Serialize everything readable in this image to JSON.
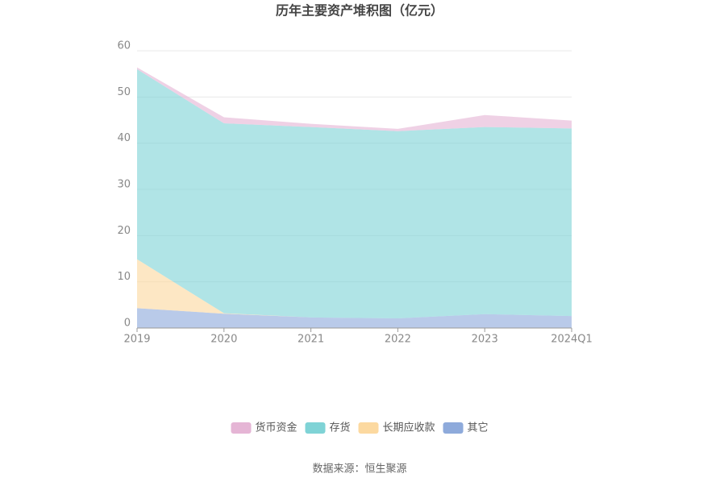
{
  "chart_data": {
    "type": "stacked_area",
    "title": "历年主要资产堆积图（亿元）",
    "categories": [
      "2019",
      "2020",
      "2021",
      "2022",
      "2023",
      "2024Q1"
    ],
    "series": [
      {
        "name": "货币资金",
        "color": "#e5b5d5",
        "values": [
          0.4,
          1.3,
          0.7,
          0.5,
          2.6,
          1.7
        ]
      },
      {
        "name": "存货",
        "color": "#7fd3d6",
        "values": [
          41.1,
          41.1,
          41.2,
          40.5,
          40.5,
          40.6
        ]
      },
      {
        "name": "长期应收款",
        "color": "#fcd9a0",
        "values": [
          10.6,
          0.1,
          0,
          0,
          0,
          0
        ]
      },
      {
        "name": "其它",
        "color": "#8eaadb",
        "values": [
          4.3,
          3.1,
          2.3,
          2.1,
          3.0,
          2.6
        ]
      }
    ],
    "ylim": [
      0,
      60
    ],
    "yticks": [
      0,
      10,
      20,
      30,
      40,
      50,
      60
    ],
    "grid": true,
    "source": "数据来源：恒生聚源"
  }
}
